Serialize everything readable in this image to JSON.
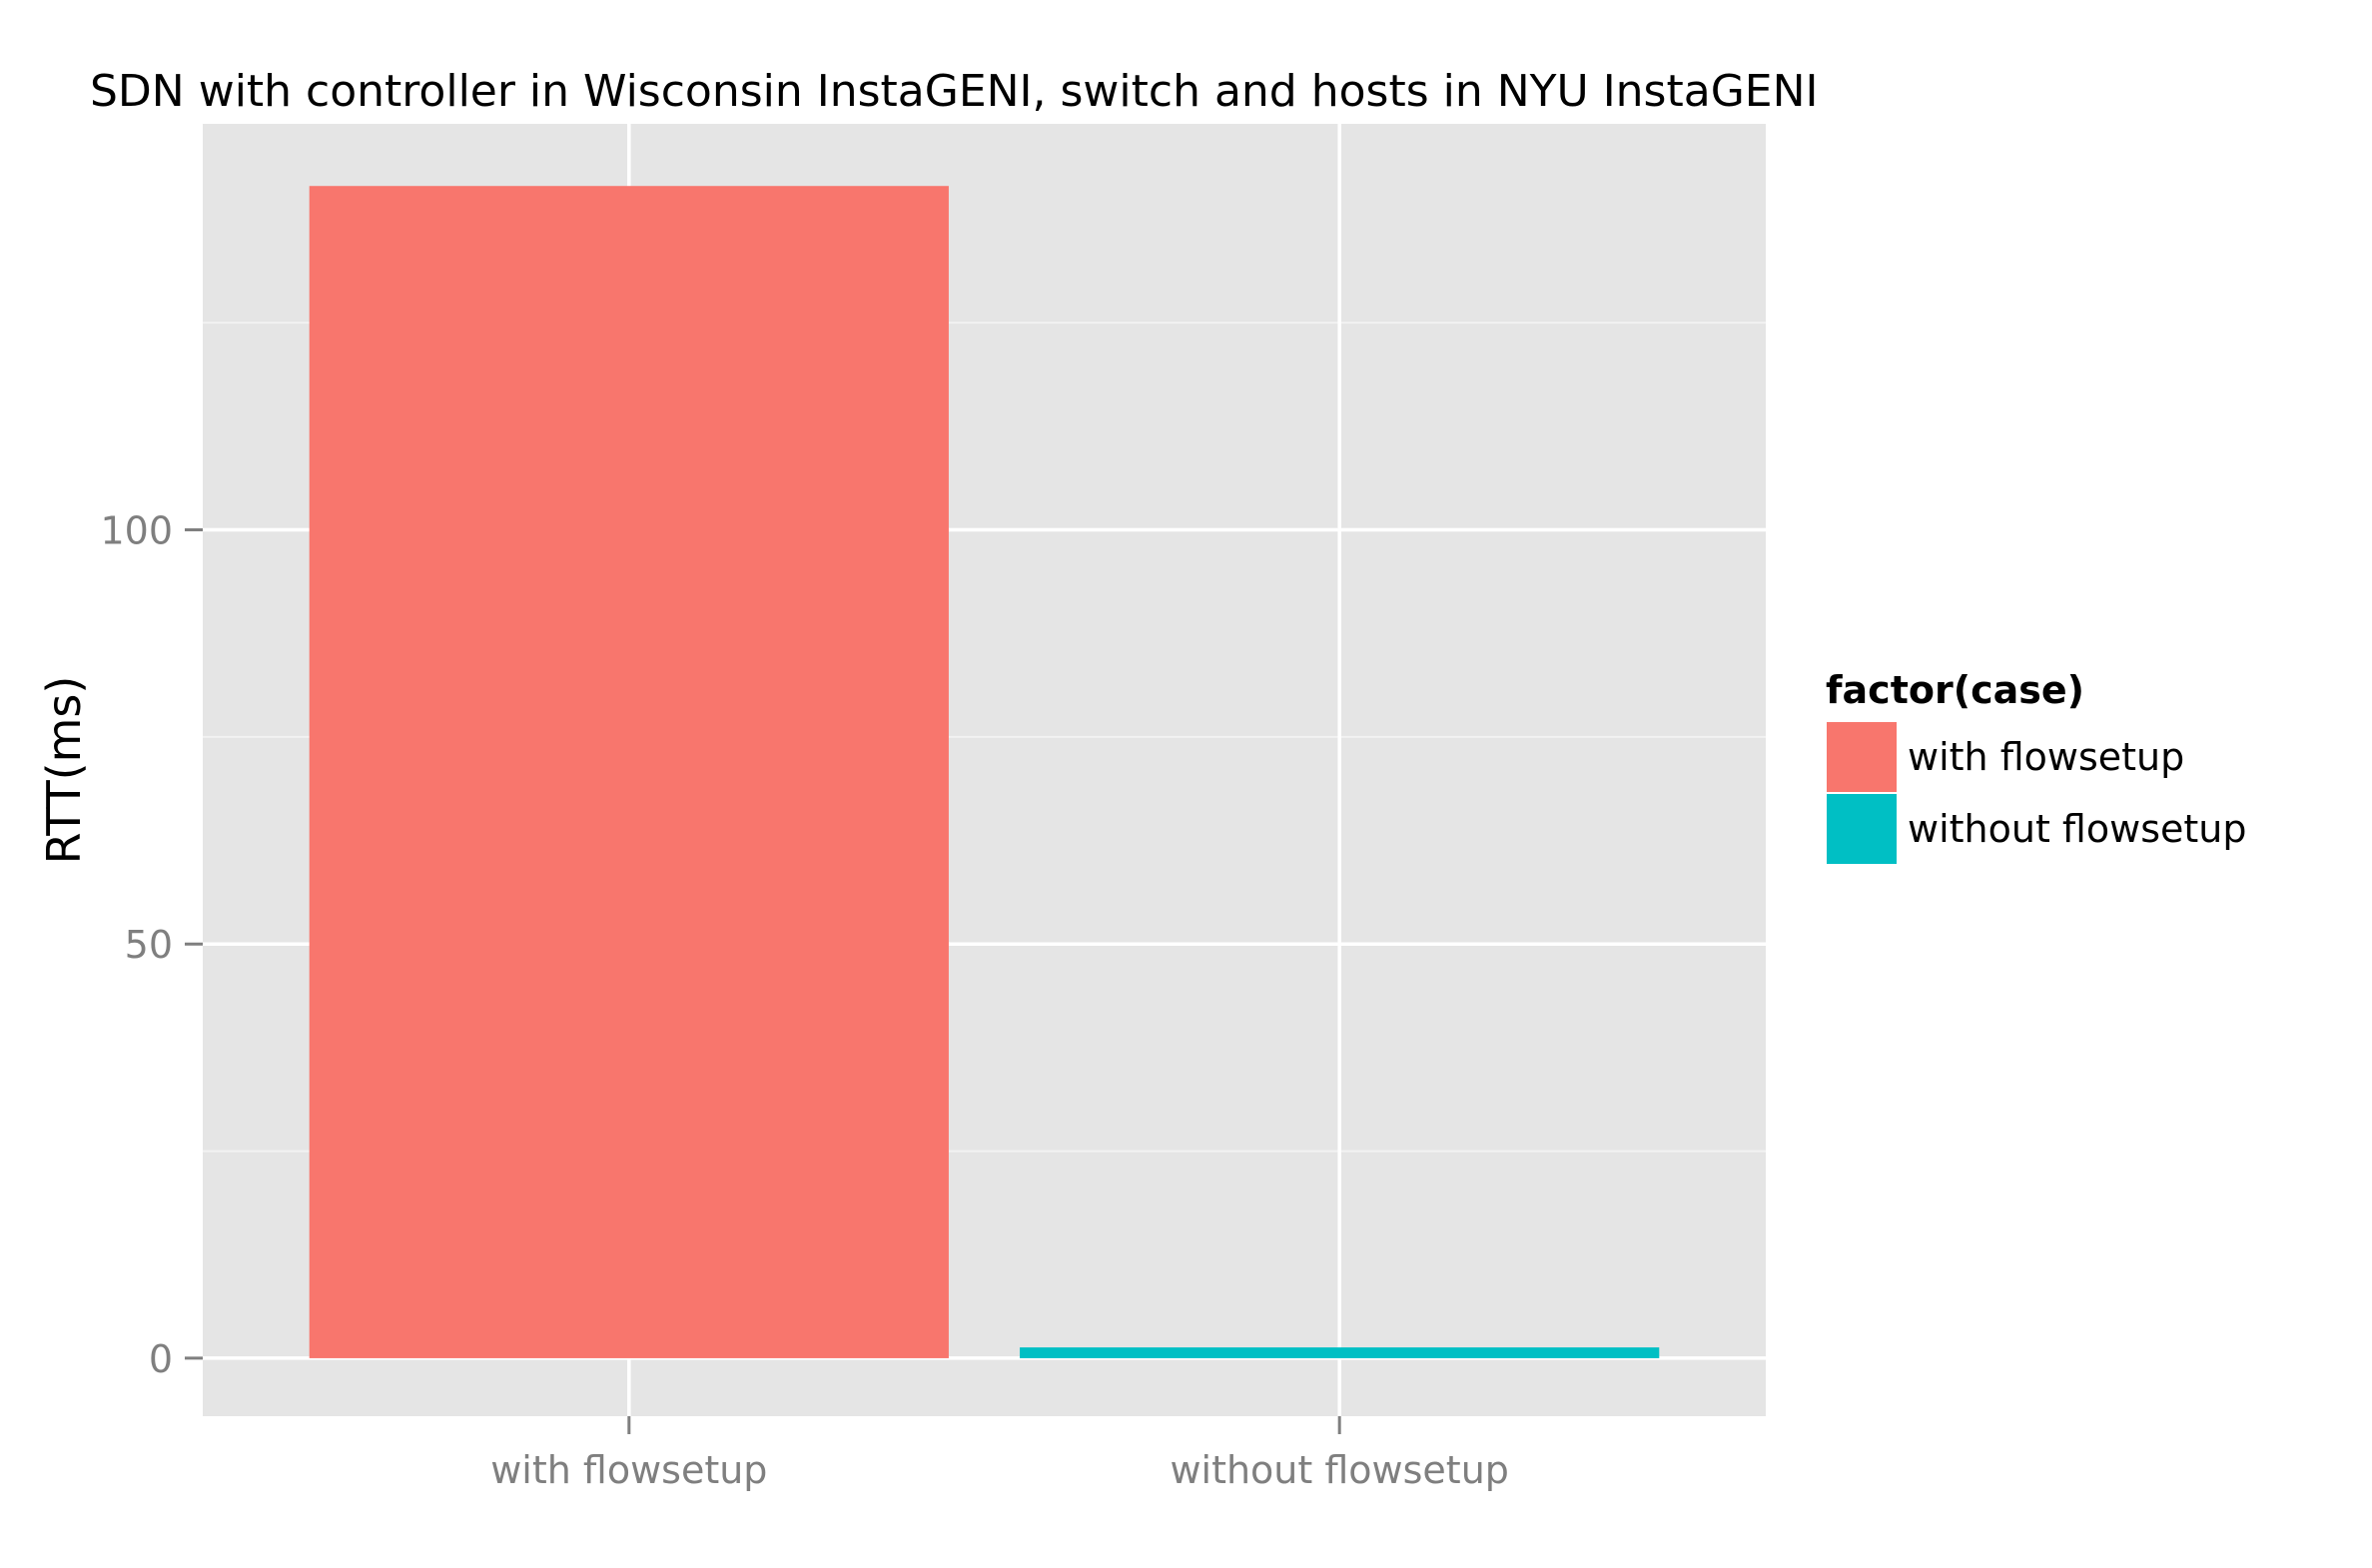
{
  "chart_data": {
    "type": "bar",
    "title": "SDN with controller in Wisconsin InstaGENI, switch and hosts in NYU InstaGENI",
    "xlabel": "",
    "ylabel": "RTT(ms)",
    "categories": [
      "with flowsetup",
      "without flowsetup"
    ],
    "values": [
      141.5,
      1.3
    ],
    "ylim": [
      -7,
      149
    ],
    "yticks": [
      0,
      50,
      100
    ],
    "ytick_labels": [
      "0",
      "50",
      "100"
    ],
    "grid": true,
    "legend": {
      "title": "factor(case)",
      "placement": "right",
      "entries": [
        "with flowsetup",
        "without flowsetup"
      ]
    },
    "colors": [
      "#F8766D",
      "#00BFC4"
    ]
  },
  "style": {
    "panel_background": "#E5E5E5",
    "grid_major": "#FFFFFF",
    "grid_minor": "#F2F2F2",
    "tick_color": "#7F7F7F",
    "axis_text_color": "#7F7F7F"
  }
}
